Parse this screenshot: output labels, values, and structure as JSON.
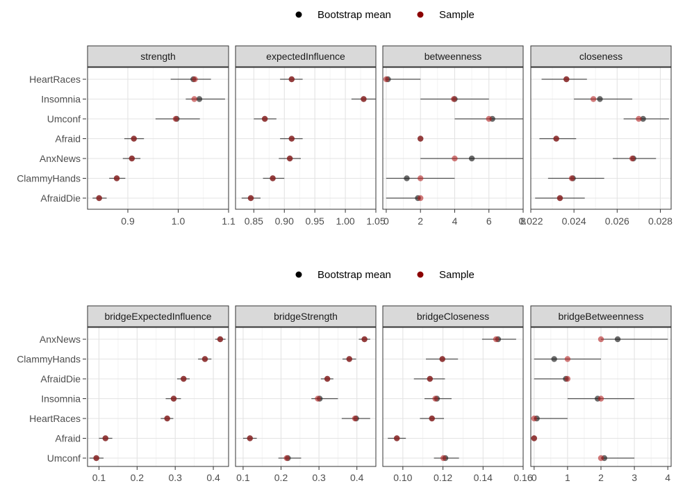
{
  "chart_data": [
    {
      "type": "scatter",
      "legend": {
        "position": "top",
        "entries": [
          {
            "label": "Bootstrap mean",
            "color": "#000000"
          },
          {
            "label": "Sample",
            "color": "#8b0000"
          }
        ]
      },
      "y_categories": [
        "HeartRaces",
        "Insomnia",
        "Umconf",
        "Afraid",
        "AnxNews",
        "ClammyHands",
        "AfraidDie"
      ],
      "panels": [
        {
          "title": "strength",
          "xlim": [
            0.82,
            1.1
          ],
          "xticks": [
            0.9,
            1.0,
            1.1
          ],
          "xtick_labels": [
            "0.9",
            "1.0",
            "1.1"
          ],
          "points": [
            {
              "node": "HeartRaces",
              "bootstrap_mean": 1.03,
              "sample": 1.033,
              "ci": [
                0.985,
                1.065
              ]
            },
            {
              "node": "Insomnia",
              "bootstrap_mean": 1.042,
              "sample": 1.032,
              "ci": [
                1.015,
                1.093
              ]
            },
            {
              "node": "Umconf",
              "bootstrap_mean": 0.997,
              "sample": 0.995,
              "ci": [
                0.955,
                1.043
              ]
            },
            {
              "node": "Afraid",
              "bootstrap_mean": 0.912,
              "sample": 0.912,
              "ci": [
                0.893,
                0.932
              ]
            },
            {
              "node": "AnxNews",
              "bootstrap_mean": 0.908,
              "sample": 0.908,
              "ci": [
                0.89,
                0.925
              ]
            },
            {
              "node": "ClammyHands",
              "bootstrap_mean": 0.878,
              "sample": 0.878,
              "ci": [
                0.863,
                0.895
              ]
            },
            {
              "node": "AfraidDie",
              "bootstrap_mean": 0.843,
              "sample": 0.843,
              "ci": [
                0.83,
                0.858
              ]
            }
          ]
        },
        {
          "title": "expectedInfluence",
          "xlim": [
            0.82,
            1.05
          ],
          "xticks": [
            0.85,
            0.9,
            0.95,
            1.0,
            1.05
          ],
          "xtick_labels": [
            "0.85",
            "0.90",
            "0.95",
            "1.00",
            "1.05"
          ],
          "points": [
            {
              "node": "HeartRaces",
              "bootstrap_mean": 0.912,
              "sample": 0.912,
              "ci": [
                0.893,
                0.93
              ]
            },
            {
              "node": "Insomnia",
              "bootstrap_mean": 1.03,
              "sample": 1.03,
              "ci": [
                1.01,
                1.05
              ]
            },
            {
              "node": "Umconf",
              "bootstrap_mean": 0.868,
              "sample": 0.868,
              "ci": [
                0.85,
                0.887
              ]
            },
            {
              "node": "Afraid",
              "bootstrap_mean": 0.912,
              "sample": 0.912,
              "ci": [
                0.893,
                0.93
              ]
            },
            {
              "node": "AnxNews",
              "bootstrap_mean": 0.909,
              "sample": 0.909,
              "ci": [
                0.891,
                0.927
              ]
            },
            {
              "node": "ClammyHands",
              "bootstrap_mean": 0.881,
              "sample": 0.881,
              "ci": [
                0.865,
                0.9
              ]
            },
            {
              "node": "AfraidDie",
              "bootstrap_mean": 0.845,
              "sample": 0.845,
              "ci": [
                0.83,
                0.861
              ]
            }
          ]
        },
        {
          "title": "betweenness",
          "xlim": [
            -0.2,
            8.0
          ],
          "xticks": [
            0,
            2,
            4,
            6,
            8
          ],
          "xtick_labels": [
            "0",
            "2",
            "4",
            "6",
            "8"
          ],
          "points": [
            {
              "node": "HeartRaces",
              "bootstrap_mean": 0.1,
              "sample": 0.0,
              "ci": [
                0.0,
                2.0
              ]
            },
            {
              "node": "Insomnia",
              "bootstrap_mean": 4.0,
              "sample": 3.95,
              "ci": [
                2.0,
                6.0
              ]
            },
            {
              "node": "Umconf",
              "bootstrap_mean": 6.2,
              "sample": 6.0,
              "ci": [
                4.0,
                8.0
              ]
            },
            {
              "node": "Afraid",
              "bootstrap_mean": 2.0,
              "sample": 2.0,
              "ci": [
                2.0,
                2.0
              ]
            },
            {
              "node": "AnxNews",
              "bootstrap_mean": 5.0,
              "sample": 4.0,
              "ci": [
                2.0,
                8.0
              ]
            },
            {
              "node": "ClammyHands",
              "bootstrap_mean": 1.2,
              "sample": 2.0,
              "ci": [
                0.0,
                4.0
              ]
            },
            {
              "node": "AfraidDie",
              "bootstrap_mean": 1.85,
              "sample": 2.0,
              "ci": [
                0.0,
                2.0
              ]
            }
          ]
        },
        {
          "title": "closeness",
          "xlim": [
            0.022,
            0.0285
          ],
          "xticks": [
            0.022,
            0.024,
            0.026,
            0.028
          ],
          "xtick_labels": [
            "0.022",
            "0.024",
            "0.026",
            "0.028"
          ],
          "points": [
            {
              "node": "HeartRaces",
              "bootstrap_mean": 0.02365,
              "sample": 0.02365,
              "ci": [
                0.0225,
                0.0246
              ]
            },
            {
              "node": "Insomnia",
              "bootstrap_mean": 0.0252,
              "sample": 0.0249,
              "ci": [
                0.024,
                0.0267
              ]
            },
            {
              "node": "Umconf",
              "bootstrap_mean": 0.0272,
              "sample": 0.027,
              "ci": [
                0.0263,
                0.0284
              ]
            },
            {
              "node": "Afraid",
              "bootstrap_mean": 0.02318,
              "sample": 0.02318,
              "ci": [
                0.0224,
                0.0241
              ]
            },
            {
              "node": "AnxNews",
              "bootstrap_mean": 0.02675,
              "sample": 0.0267,
              "ci": [
                0.0258,
                0.0278
              ]
            },
            {
              "node": "ClammyHands",
              "bootstrap_mean": 0.02395,
              "sample": 0.0239,
              "ci": [
                0.0228,
                0.0254
              ]
            },
            {
              "node": "AfraidDie",
              "bootstrap_mean": 0.02335,
              "sample": 0.02335,
              "ci": [
                0.0222,
                0.0245
              ]
            }
          ]
        }
      ]
    },
    {
      "type": "scatter",
      "legend": {
        "position": "top",
        "entries": [
          {
            "label": "Bootstrap mean",
            "color": "#000000"
          },
          {
            "label": "Sample",
            "color": "#8b0000"
          }
        ]
      },
      "y_categories": [
        "AnxNews",
        "ClammyHands",
        "AfraidDie",
        "Insomnia",
        "HeartRaces",
        "Afraid",
        "Umconf"
      ],
      "panels": [
        {
          "title": "bridgeExpectedInfluence",
          "xlim": [
            0.07,
            0.44
          ],
          "xticks": [
            0.1,
            0.2,
            0.3,
            0.4
          ],
          "xtick_labels": [
            "0.1",
            "0.2",
            "0.3",
            "0.4"
          ],
          "points": [
            {
              "node": "AnxNews",
              "bootstrap_mean": 0.418,
              "sample": 0.418,
              "ci": [
                0.405,
                0.432
              ]
            },
            {
              "node": "ClammyHands",
              "bootstrap_mean": 0.378,
              "sample": 0.378,
              "ci": [
                0.36,
                0.395
              ]
            },
            {
              "node": "AfraidDie",
              "bootstrap_mean": 0.322,
              "sample": 0.322,
              "ci": [
                0.305,
                0.338
              ]
            },
            {
              "node": "Insomnia",
              "bootstrap_mean": 0.296,
              "sample": 0.296,
              "ci": [
                0.275,
                0.315
              ]
            },
            {
              "node": "HeartRaces",
              "bootstrap_mean": 0.279,
              "sample": 0.279,
              "ci": [
                0.262,
                0.295
              ]
            },
            {
              "node": "Afraid",
              "bootstrap_mean": 0.117,
              "sample": 0.117,
              "ci": [
                0.1,
                0.135
              ]
            },
            {
              "node": "Umconf",
              "bootstrap_mean": 0.093,
              "sample": 0.093,
              "ci": [
                0.075,
                0.112
              ]
            }
          ]
        },
        {
          "title": "bridgeStrength",
          "xlim": [
            0.08,
            0.45
          ],
          "xticks": [
            0.1,
            0.2,
            0.3,
            0.4
          ],
          "xtick_labels": [
            "0.1",
            "0.2",
            "0.3",
            "0.4"
          ],
          "points": [
            {
              "node": "AnxNews",
              "bootstrap_mean": 0.42,
              "sample": 0.42,
              "ci": [
                0.405,
                0.435
              ]
            },
            {
              "node": "ClammyHands",
              "bootstrap_mean": 0.38,
              "sample": 0.38,
              "ci": [
                0.362,
                0.398
              ]
            },
            {
              "node": "AfraidDie",
              "bootstrap_mean": 0.322,
              "sample": 0.322,
              "ci": [
                0.305,
                0.338
              ]
            },
            {
              "node": "Insomnia",
              "bootstrap_mean": 0.302,
              "sample": 0.297,
              "ci": [
                0.28,
                0.35
              ]
            },
            {
              "node": "HeartRaces",
              "bootstrap_mean": 0.398,
              "sample": 0.395,
              "ci": [
                0.36,
                0.435
              ]
            },
            {
              "node": "Afraid",
              "bootstrap_mean": 0.118,
              "sample": 0.118,
              "ci": [
                0.1,
                0.136
              ]
            },
            {
              "node": "Umconf",
              "bootstrap_mean": 0.218,
              "sample": 0.215,
              "ci": [
                0.193,
                0.253
              ]
            }
          ]
        },
        {
          "title": "bridgeCloseness",
          "xlim": [
            0.09,
            0.16
          ],
          "xticks": [
            0.1,
            0.12,
            0.14,
            0.16
          ],
          "xtick_labels": [
            "0.10",
            "0.12",
            "0.14",
            "0.16"
          ],
          "points": [
            {
              "node": "AnxNews",
              "bootstrap_mean": 0.1475,
              "sample": 0.1465,
              "ci": [
                0.1395,
                0.1565
              ]
            },
            {
              "node": "ClammyHands",
              "bootstrap_mean": 0.1197,
              "sample": 0.1197,
              "ci": [
                0.1115,
                0.1275
              ]
            },
            {
              "node": "AfraidDie",
              "bootstrap_mean": 0.1135,
              "sample": 0.1135,
              "ci": [
                0.1055,
                0.121
              ]
            },
            {
              "node": "Insomnia",
              "bootstrap_mean": 0.117,
              "sample": 0.1162,
              "ci": [
                0.1108,
                0.1243
              ]
            },
            {
              "node": "HeartRaces",
              "bootstrap_mean": 0.1145,
              "sample": 0.1145,
              "ci": [
                0.1085,
                0.1205
              ]
            },
            {
              "node": "Afraid",
              "bootstrap_mean": 0.097,
              "sample": 0.097,
              "ci": [
                0.0925,
                0.1015
              ]
            },
            {
              "node": "Umconf",
              "bootstrap_mean": 0.1212,
              "sample": 0.1202,
              "ci": [
                0.1155,
                0.128
              ]
            }
          ]
        },
        {
          "title": "bridgeBetweenness",
          "xlim": [
            -0.1,
            4.1
          ],
          "xticks": [
            0,
            1,
            2,
            3,
            4
          ],
          "xtick_labels": [
            "0",
            "1",
            "2",
            "3",
            "4"
          ],
          "points": [
            {
              "node": "AnxNews",
              "bootstrap_mean": 2.5,
              "sample": 2.0,
              "ci": [
                2.0,
                4.0
              ]
            },
            {
              "node": "ClammyHands",
              "bootstrap_mean": 0.6,
              "sample": 1.0,
              "ci": [
                0.0,
                2.0
              ]
            },
            {
              "node": "AfraidDie",
              "bootstrap_mean": 0.95,
              "sample": 1.0,
              "ci": [
                0.0,
                1.0
              ]
            },
            {
              "node": "Insomnia",
              "bootstrap_mean": 1.9,
              "sample": 2.0,
              "ci": [
                1.0,
                3.0
              ]
            },
            {
              "node": "HeartRaces",
              "bootstrap_mean": 0.08,
              "sample": 0.0,
              "ci": [
                0.0,
                1.0
              ]
            },
            {
              "node": "Afraid",
              "bootstrap_mean": 0.0,
              "sample": 0.0,
              "ci": [
                0.0,
                0.0
              ]
            },
            {
              "node": "Umconf",
              "bootstrap_mean": 2.1,
              "sample": 2.0,
              "ci": [
                2.0,
                3.0
              ]
            }
          ]
        }
      ]
    }
  ]
}
